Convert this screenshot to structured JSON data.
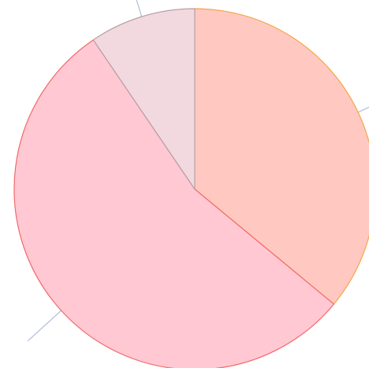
{
  "chart_data": {
    "type": "pie",
    "title": "",
    "start_angle_deg": 0,
    "direction": "clockwise",
    "legend": "none",
    "slices": [
      {
        "value": 36,
        "label": "",
        "color": "#ffc9c1",
        "edge_color": "#f4a64a"
      },
      {
        "value": 54.5,
        "label": "",
        "color": "#ffc8d3",
        "edge_color": "#f26a6a"
      },
      {
        "value": 9.5,
        "label": "",
        "color": "#f2d8df",
        "edge_color": "#b7a1a8"
      }
    ],
    "leader_line_color": "#b9c2dd"
  }
}
